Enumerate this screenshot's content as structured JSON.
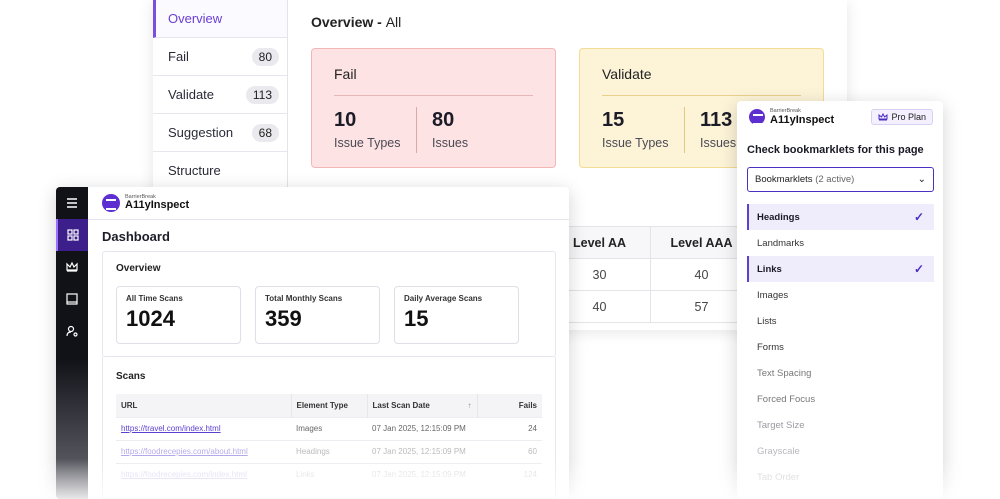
{
  "report": {
    "nav": [
      {
        "label": "Overview",
        "count": null
      },
      {
        "label": "Fail",
        "count": "80"
      },
      {
        "label": "Validate",
        "count": "113"
      },
      {
        "label": "Suggestion",
        "count": "68"
      },
      {
        "label": "Structure",
        "count": null
      }
    ],
    "title": "Overview - ",
    "title_sub": "All",
    "fail_card": {
      "title": "Fail",
      "types_value": "10",
      "types_label": "Issue Types",
      "issues_value": "80",
      "issues_label": "Issues"
    },
    "validate_card": {
      "title": "Validate",
      "types_value": "15",
      "types_label": "Issue Types",
      "issues_value": "113",
      "issues_label": "Issues"
    },
    "levels": {
      "headers": [
        "Level AA",
        "Level AAA"
      ],
      "rows": [
        [
          "30",
          "40"
        ],
        [
          "40",
          "57"
        ]
      ]
    }
  },
  "dashboard": {
    "brand_small": "BarrierBreak",
    "brand_big": "A11yInspect",
    "title": "Dashboard",
    "overview_title": "Overview",
    "kpis": [
      {
        "label": "All Time Scans",
        "value": "1024"
      },
      {
        "label": "Total Monthly Scans",
        "value": "359"
      },
      {
        "label": "Daily Average Scans",
        "value": "15"
      }
    ],
    "scans_title": "Scans",
    "columns": [
      "URL",
      "Element Type",
      "Last Scan Date",
      "Fails"
    ],
    "rows": [
      {
        "url": "https://travel.com/index.html",
        "type": "Images",
        "date": "07 Jan 2025, 12:15:09 PM",
        "fails": "24"
      },
      {
        "url": "https://foodrecepies.com/about.html",
        "type": "Headings",
        "date": "07 Jan 2025, 12:15:09 PM",
        "fails": "60"
      },
      {
        "url": "https://foodrecepies.com/index.html",
        "type": "Links",
        "date": "07 Jan 2025, 12:15:09 PM",
        "fails": "124"
      }
    ]
  },
  "popup": {
    "brand_small": "BarrierBreak",
    "brand_big": "A11yInspect",
    "plan": "Pro Plan",
    "question": "Check bookmarklets for this page",
    "select_label": "Bookmarklets",
    "select_active": "(2 active)",
    "options": [
      {
        "label": "Headings",
        "selected": true
      },
      {
        "label": "Landmarks",
        "selected": false
      },
      {
        "label": "Links",
        "selected": true
      },
      {
        "label": "Images",
        "selected": false
      },
      {
        "label": "Lists",
        "selected": false
      },
      {
        "label": "Forms",
        "selected": false
      },
      {
        "label": "Text Spacing",
        "selected": false
      },
      {
        "label": "Forced Focus",
        "selected": false
      },
      {
        "label": "Target Size",
        "selected": false
      },
      {
        "label": "Grayscale",
        "selected": false
      },
      {
        "label": "Tab Order",
        "selected": false
      }
    ]
  }
}
